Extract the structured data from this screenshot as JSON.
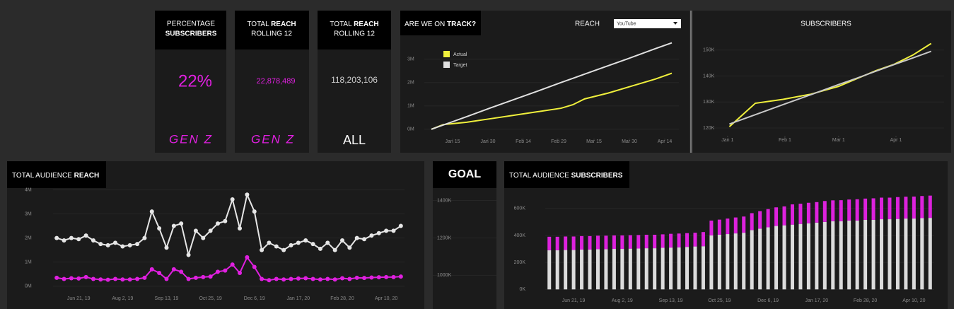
{
  "kpis": [
    {
      "header": [
        "PERCENTAGE",
        "SUBSCRIBERS"
      ],
      "value": "22%",
      "footer": "GEN Z"
    },
    {
      "header": [
        "TOTAL",
        "REACH",
        "ROLLING 12"
      ],
      "value": "22,878,489",
      "footer": "GEN Z"
    },
    {
      "header": [
        "TOTAL",
        "REACH",
        "ROLLING 12"
      ],
      "value": "118,203,106",
      "footer": "ALL"
    }
  ],
  "chart_data": [
    {
      "type": "line",
      "header": [
        "ARE WE ON",
        "TRACK?"
      ],
      "title": "REACH",
      "dropdown": "YouTube",
      "x": [
        5,
        10,
        20,
        30,
        40,
        50,
        60,
        65,
        70,
        80,
        90,
        100,
        107
      ],
      "series": [
        {
          "name": "Actual",
          "color": "#f0f03c",
          "values": [
            0,
            0.2,
            0.3,
            0.45,
            0.6,
            0.75,
            0.9,
            1.05,
            1.3,
            1.55,
            1.85,
            2.15,
            2.4
          ]
        },
        {
          "name": "Target",
          "color": "#e0e0e0",
          "values": [
            0,
            0.18,
            0.54,
            0.91,
            1.27,
            1.63,
            2.0,
            2.18,
            2.36,
            2.72,
            3.08,
            3.45,
            3.7
          ]
        }
      ],
      "xlim": [
        2,
        110
      ],
      "xticks": [
        {
          "value": 14,
          "label": "Jan 15"
        },
        {
          "value": 29,
          "label": "Jan 30"
        },
        {
          "value": 44,
          "label": "Feb 14"
        },
        {
          "value": 59,
          "label": "Feb 29"
        },
        {
          "value": 74,
          "label": "Mar 15"
        },
        {
          "value": 89,
          "label": "Mar 30"
        },
        {
          "value": 104,
          "label": "Apr 14"
        }
      ],
      "ylim": [
        -0.4,
        3.9
      ],
      "yticks": [
        {
          "value": 0,
          "label": "0M"
        },
        {
          "value": 1,
          "label": "1M"
        },
        {
          "value": 2,
          "label": "2M"
        },
        {
          "value": 3,
          "label": "3M"
        }
      ],
      "legend": "top-left"
    },
    {
      "type": "line",
      "title": "SUBSCRIBERS",
      "x": [
        1,
        8,
        15,
        30,
        45,
        60,
        70,
        80,
        90,
        100,
        110
      ],
      "series": [
        {
          "color": "#f0f03c",
          "values": [
            120.5,
            125,
            129.5,
            131,
            133,
            136,
            139,
            142,
            144.5,
            148,
            152.5
          ]
        },
        {
          "color": "#c8c8c8",
          "values": [
            121.5,
            123.3,
            125.1,
            129.0,
            132.8,
            136.7,
            139.2,
            141.8,
            144.4,
            146.9,
            149.5
          ]
        }
      ],
      "xlim": [
        -11,
        117
      ],
      "xticks": [
        {
          "value": 0,
          "label": "Jan 1"
        },
        {
          "value": 31,
          "label": "Feb 1"
        },
        {
          "value": 60,
          "label": "Mar 1"
        },
        {
          "value": 91,
          "label": "Apr 1"
        }
      ],
      "ylim": [
        117,
        154
      ],
      "yticks": [
        {
          "value": 120,
          "label": "120K"
        },
        {
          "value": 130,
          "label": "130K"
        },
        {
          "value": 140,
          "label": "140K"
        },
        {
          "value": 150,
          "label": "150K"
        }
      ]
    },
    {
      "type": "dotline",
      "header": [
        "TOTAL AUDIENCE",
        "REACH"
      ],
      "categories": [
        null,
        null,
        null,
        "Jun 21, 19",
        null,
        null,
        null,
        null,
        null,
        "Aug 2, 19",
        null,
        null,
        null,
        null,
        null,
        "Sep 13, 19",
        null,
        null,
        null,
        null,
        null,
        "Oct 25, 19",
        null,
        null,
        null,
        null,
        null,
        "Dec 6, 19",
        null,
        null,
        null,
        null,
        null,
        "Jan 17, 20",
        null,
        null,
        null,
        null,
        null,
        "Feb 28, 20",
        null,
        null,
        null,
        null,
        null,
        "Apr 10, 20",
        null,
        null
      ],
      "series": [
        {
          "color": "#e6e6e6",
          "values": [
            2.0,
            1.9,
            2.0,
            1.95,
            2.1,
            1.9,
            1.75,
            1.7,
            1.8,
            1.65,
            1.7,
            1.75,
            2.0,
            3.1,
            2.4,
            1.6,
            2.5,
            2.6,
            1.3,
            2.3,
            2.0,
            2.3,
            2.6,
            2.7,
            3.6,
            2.4,
            3.8,
            3.1,
            1.5,
            1.8,
            1.65,
            1.5,
            1.7,
            1.8,
            1.9,
            1.75,
            1.55,
            1.8,
            1.5,
            1.9,
            1.6,
            2.0,
            1.95,
            2.1,
            2.2,
            2.3,
            2.3,
            2.5
          ]
        },
        {
          "color": "#e020e0",
          "values": [
            0.35,
            0.3,
            0.33,
            0.32,
            0.38,
            0.3,
            0.28,
            0.27,
            0.3,
            0.28,
            0.28,
            0.3,
            0.35,
            0.7,
            0.55,
            0.3,
            0.7,
            0.6,
            0.3,
            0.35,
            0.38,
            0.4,
            0.6,
            0.65,
            0.9,
            0.55,
            1.2,
            0.8,
            0.3,
            0.25,
            0.3,
            0.28,
            0.3,
            0.32,
            0.33,
            0.3,
            0.28,
            0.3,
            0.28,
            0.33,
            0.3,
            0.35,
            0.34,
            0.36,
            0.37,
            0.38,
            0.38,
            0.4
          ]
        }
      ],
      "ylim": [
        -0.3,
        4.1
      ],
      "yticks": [
        {
          "value": 0,
          "label": "0M"
        },
        {
          "value": 1,
          "label": "1M"
        },
        {
          "value": 2,
          "label": "2M"
        },
        {
          "value": 3,
          "label": "3M"
        },
        {
          "value": 4,
          "label": "4M"
        }
      ]
    },
    {
      "type": "axis",
      "title": "GOAL",
      "ylim": [
        820,
        1470
      ],
      "yticks": [
        {
          "value": 1000,
          "label": "1000K"
        },
        {
          "value": 1200,
          "label": "1200K"
        },
        {
          "value": 1400,
          "label": "1400K"
        }
      ]
    },
    {
      "type": "stacked_bar",
      "header": [
        "TOTAL AUDIENCE",
        "SUBSCRIBERS"
      ],
      "categories": [
        null,
        null,
        null,
        "Jun 21, 19",
        null,
        null,
        null,
        null,
        null,
        "Aug 2, 19",
        null,
        null,
        null,
        null,
        null,
        "Sep 13, 19",
        null,
        null,
        null,
        null,
        null,
        "Oct 25, 19",
        null,
        null,
        null,
        null,
        null,
        "Dec 6, 19",
        null,
        null,
        null,
        null,
        null,
        "Jan 17, 20",
        null,
        null,
        null,
        null,
        null,
        "Feb 28, 20",
        null,
        null,
        null,
        null,
        null,
        "Apr 10, 20",
        null,
        null
      ],
      "series": [
        {
          "color": "#dcdcdc",
          "values": [
            290,
            290,
            292,
            292,
            295,
            295,
            298,
            298,
            300,
            300,
            302,
            303,
            305,
            305,
            308,
            310,
            312,
            315,
            318,
            320,
            400,
            405,
            410,
            415,
            420,
            440,
            450,
            460,
            470,
            475,
            480,
            485,
            490,
            495,
            500,
            505,
            505,
            510,
            510,
            515,
            515,
            520,
            520,
            522,
            525,
            525,
            528,
            530
          ]
        },
        {
          "color": "#dd22dd",
          "values": [
            100,
            100,
            100,
            100,
            100,
            100,
            100,
            100,
            100,
            100,
            100,
            100,
            100,
            100,
            100,
            102,
            102,
            102,
            102,
            105,
            110,
            112,
            115,
            118,
            120,
            125,
            130,
            135,
            138,
            140,
            150,
            150,
            152,
            152,
            155,
            155,
            156,
            156,
            158,
            158,
            160,
            160,
            160,
            162,
            162,
            163,
            164,
            165
          ]
        }
      ],
      "ylim": [
        -30,
        625
      ],
      "yticks": [
        {
          "value": 0,
          "label": "0K"
        },
        {
          "value": 200,
          "label": "200K"
        },
        {
          "value": 400,
          "label": "400K"
        },
        {
          "value": 600,
          "label": "600K"
        }
      ]
    }
  ]
}
